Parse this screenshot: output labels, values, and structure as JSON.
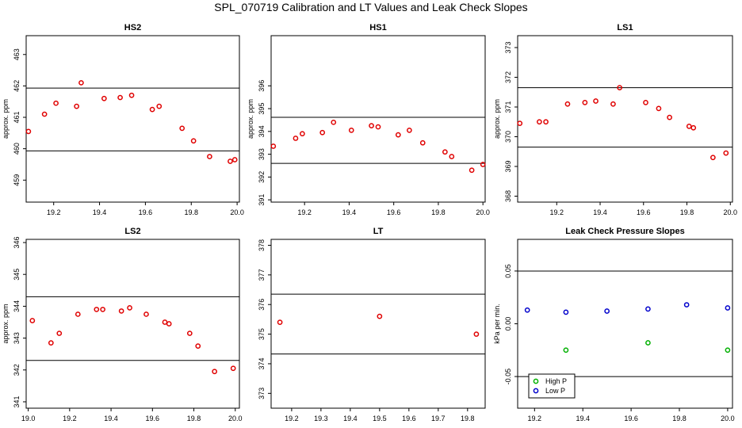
{
  "figure_title": "SPL_070719  Calibration and LT Values and Leak Check Slopes",
  "chart_data": [
    {
      "type": "scatter",
      "title": "HS2",
      "ylabel": "approx. ppm",
      "xlim": [
        19.08,
        20.01
      ],
      "ylim": [
        458.3,
        463.6
      ],
      "xticks": [
        "19.2",
        "19.4",
        "19.6",
        "19.8",
        "20.0"
      ],
      "yticks": [
        "459",
        "460",
        "461",
        "462",
        "463"
      ],
      "hlines": [
        461.93,
        459.93
      ],
      "marker_color": "#e00000",
      "series": [
        {
          "x": [
            19.09,
            19.16,
            19.21,
            19.3,
            19.32,
            19.42,
            19.49,
            19.54,
            19.63,
            19.66,
            19.76,
            19.81,
            19.88,
            19.97,
            19.99
          ],
          "y": [
            460.55,
            461.1,
            461.45,
            461.35,
            462.1,
            461.6,
            461.63,
            461.7,
            461.25,
            461.35,
            460.65,
            460.25,
            459.75,
            459.6,
            459.65
          ]
        }
      ]
    },
    {
      "type": "scatter",
      "title": "HS1",
      "ylabel": "approx. ppm",
      "xlim": [
        19.05,
        20.01
      ],
      "ylim": [
        390.9,
        398.2
      ],
      "xticks": [
        "19.2",
        "19.4",
        "19.6",
        "19.8",
        "20.0"
      ],
      "yticks": [
        "391",
        "392",
        "393",
        "394",
        "395",
        "396"
      ],
      "hlines": [
        394.62,
        392.6
      ],
      "marker_color": "#e00000",
      "series": [
        {
          "x": [
            19.06,
            19.16,
            19.19,
            19.28,
            19.33,
            19.41,
            19.5,
            19.53,
            19.62,
            19.67,
            19.73,
            19.83,
            19.86,
            19.95,
            20.0
          ],
          "y": [
            393.35,
            393.7,
            393.9,
            393.95,
            394.4,
            394.05,
            394.25,
            394.2,
            393.85,
            394.05,
            393.5,
            393.1,
            392.9,
            392.3,
            392.55
          ]
        }
      ]
    },
    {
      "type": "scatter",
      "title": "LS1",
      "ylabel": "approx. ppm",
      "xlim": [
        19.02,
        20.01
      ],
      "ylim": [
        367.8,
        373.4
      ],
      "xticks": [
        "19.2",
        "19.4",
        "19.6",
        "19.8",
        "20.0"
      ],
      "yticks": [
        "368",
        "369",
        "370",
        "371",
        "372",
        "373"
      ],
      "hlines": [
        371.65,
        369.65
      ],
      "marker_color": "#e00000",
      "series": [
        {
          "x": [
            19.03,
            19.12,
            19.15,
            19.25,
            19.33,
            19.38,
            19.46,
            19.49,
            19.61,
            19.67,
            19.72,
            19.81,
            19.83,
            19.92,
            19.98
          ],
          "y": [
            370.45,
            370.5,
            370.5,
            371.1,
            371.15,
            371.2,
            371.1,
            371.65,
            371.15,
            370.95,
            370.65,
            370.35,
            370.3,
            369.3,
            369.45
          ]
        }
      ]
    },
    {
      "type": "scatter",
      "title": "LS2",
      "ylabel": "approx. ppm",
      "xlim": [
        18.99,
        20.02
      ],
      "ylim": [
        340.8,
        346.1
      ],
      "xticks": [
        "19.0",
        "19.2",
        "19.4",
        "19.6",
        "19.8",
        "20.0"
      ],
      "yticks": [
        "341",
        "342",
        "343",
        "344",
        "345",
        "346"
      ],
      "hlines": [
        344.3,
        342.3
      ],
      "marker_color": "#e00000",
      "series": [
        {
          "x": [
            19.02,
            19.11,
            19.15,
            19.24,
            19.33,
            19.36,
            19.45,
            19.49,
            19.57,
            19.66,
            19.68,
            19.78,
            19.82,
            19.9,
            19.99
          ],
          "y": [
            343.55,
            342.85,
            343.15,
            343.75,
            343.9,
            343.9,
            343.85,
            343.95,
            343.75,
            343.5,
            343.45,
            343.15,
            342.75,
            341.95,
            342.05
          ]
        }
      ]
    },
    {
      "type": "scatter",
      "title": "LT",
      "ylabel": "",
      "xlim": [
        19.13,
        19.86
      ],
      "ylim": [
        372.5,
        378.2
      ],
      "xticks": [
        "19.2",
        "19.3",
        "19.4",
        "19.5",
        "19.6",
        "19.7",
        "19.8"
      ],
      "yticks": [
        "373",
        "374",
        "375",
        "376",
        "377",
        "378"
      ],
      "hlines": [
        376.35,
        374.33
      ],
      "marker_color": "#e00000",
      "series": [
        {
          "x": [
            19.16,
            19.5,
            19.83
          ],
          "y": [
            375.4,
            375.6,
            375.0
          ]
        }
      ]
    },
    {
      "type": "scatter",
      "title": "Leak Check Pressure Slopes",
      "ylabel": "kPa per min.",
      "xlim": [
        19.13,
        20.02
      ],
      "ylim": [
        -0.08,
        0.08
      ],
      "xticks": [
        "19.2",
        "19.4",
        "19.6",
        "19.8",
        "20.0"
      ],
      "yticks": [
        "-0.05",
        "0.00",
        "0.05"
      ],
      "yvals": [
        -0.05,
        0.0,
        0.05
      ],
      "hlines": [
        0.05,
        -0.05
      ],
      "legend": {
        "position": "bottom-left",
        "entries": [
          "High P",
          "Low P"
        ]
      },
      "series": [
        {
          "name": "High P",
          "color": "#00b000",
          "marker": "circle",
          "x": [
            19.33,
            19.67,
            20.0
          ],
          "y": [
            -0.025,
            -0.018,
            -0.025
          ]
        },
        {
          "name": "Low P",
          "color": "#0000cc",
          "marker": "circle",
          "x": [
            19.17,
            19.33,
            19.5,
            19.67,
            19.83,
            20.0
          ],
          "y": [
            0.013,
            0.011,
            0.012,
            0.014,
            0.018,
            0.015
          ]
        }
      ]
    }
  ]
}
